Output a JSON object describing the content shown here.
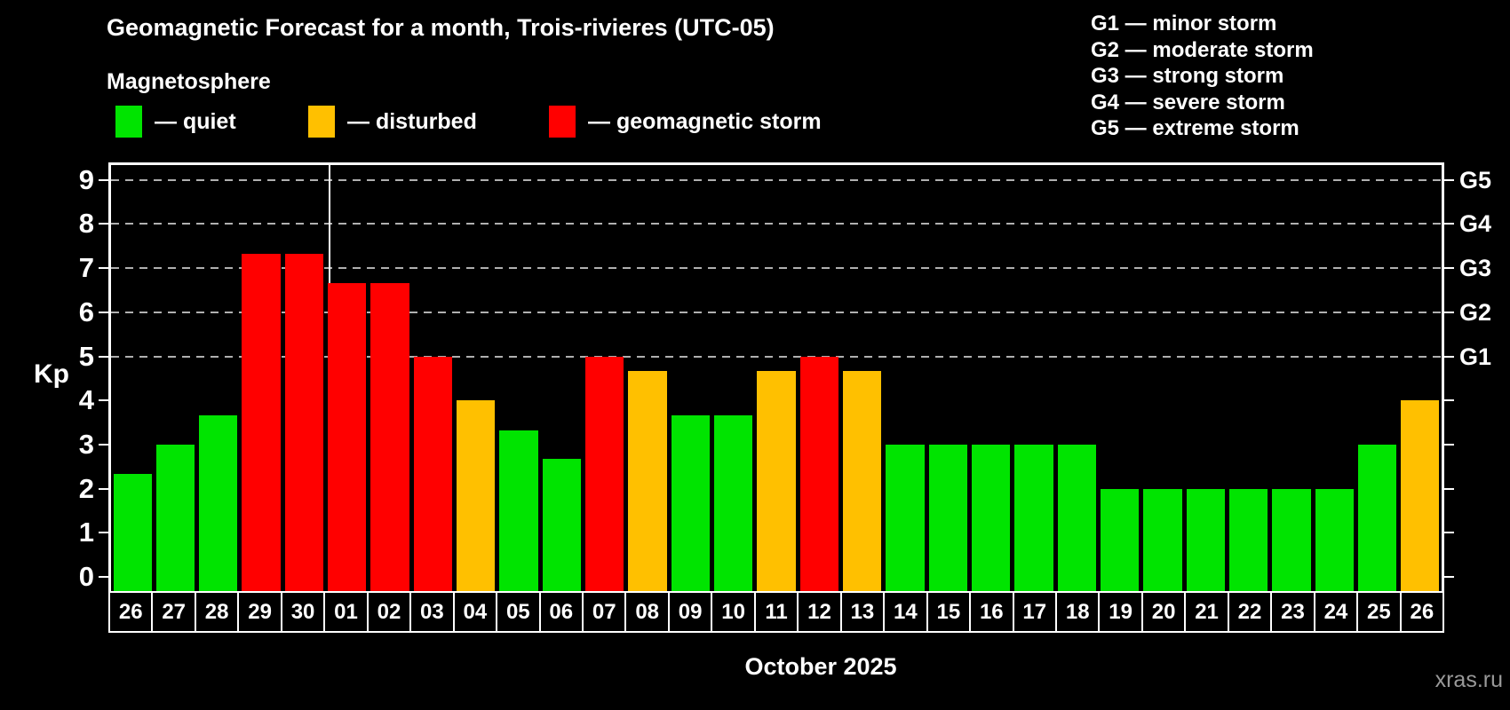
{
  "header": {
    "title": "Geomagnetic Forecast for a month, Trois-rivieres (UTC-05)",
    "subtitle": "Magnetosphere",
    "legend": {
      "items": [
        {
          "id": "quiet",
          "label": "— quiet",
          "color": "#00e400"
        },
        {
          "id": "disturbed",
          "label": "— disturbed",
          "color": "#ffc000"
        },
        {
          "id": "storm",
          "label": "— geomagnetic storm",
          "color": "#ff0000"
        }
      ]
    },
    "g_scale_legend": {
      "items": [
        {
          "label": "G1 — minor storm"
        },
        {
          "label": "G2 — moderate storm"
        },
        {
          "label": "G3 — strong storm"
        },
        {
          "label": "G4 — severe storm"
        },
        {
          "label": "G5 — extreme storm"
        }
      ]
    }
  },
  "chart_data": {
    "type": "bar",
    "title": "Geomagnetic Forecast for a month, Trois-rivieres (UTC-05)",
    "subtitle": "Magnetosphere",
    "ylabel": "Kp",
    "xlabel": "October 2025",
    "ylim": [
      0,
      9.4
    ],
    "yticks": [
      0,
      1,
      2,
      3,
      4,
      5,
      6,
      7,
      8,
      9
    ],
    "grid": {
      "style": "dashed-horizontal",
      "at_kp": [
        5,
        6,
        7,
        8,
        9
      ]
    },
    "right_axis": {
      "labels": [
        {
          "label": "G1",
          "kp": 5
        },
        {
          "label": "G2",
          "kp": 6
        },
        {
          "label": "G3",
          "kp": 7
        },
        {
          "label": "G4",
          "kp": 8
        },
        {
          "label": "G5",
          "kp": 9
        }
      ]
    },
    "status_colors": {
      "quiet": "#00e400",
      "disturbed": "#ffc000",
      "storm": "#ff0000"
    },
    "month_divider_after_day": "30",
    "bars": [
      {
        "day": "26",
        "kp": 2.33,
        "status": "quiet"
      },
      {
        "day": "27",
        "kp": 3.0,
        "status": "quiet"
      },
      {
        "day": "28",
        "kp": 3.67,
        "status": "quiet"
      },
      {
        "day": "29",
        "kp": 7.33,
        "status": "storm"
      },
      {
        "day": "30",
        "kp": 7.33,
        "status": "storm"
      },
      {
        "day": "01",
        "kp": 6.67,
        "status": "storm"
      },
      {
        "day": "02",
        "kp": 6.67,
        "status": "storm"
      },
      {
        "day": "03",
        "kp": 5.0,
        "status": "storm"
      },
      {
        "day": "04",
        "kp": 4.0,
        "status": "disturbed"
      },
      {
        "day": "05",
        "kp": 3.33,
        "status": "quiet"
      },
      {
        "day": "06",
        "kp": 2.67,
        "status": "quiet"
      },
      {
        "day": "07",
        "kp": 5.0,
        "status": "storm"
      },
      {
        "day": "08",
        "kp": 4.67,
        "status": "disturbed"
      },
      {
        "day": "09",
        "kp": 3.67,
        "status": "quiet"
      },
      {
        "day": "10",
        "kp": 3.67,
        "status": "quiet"
      },
      {
        "day": "11",
        "kp": 4.67,
        "status": "disturbed"
      },
      {
        "day": "12",
        "kp": 5.0,
        "status": "storm"
      },
      {
        "day": "13",
        "kp": 4.67,
        "status": "disturbed"
      },
      {
        "day": "14",
        "kp": 3.0,
        "status": "quiet"
      },
      {
        "day": "15",
        "kp": 3.0,
        "status": "quiet"
      },
      {
        "day": "16",
        "kp": 3.0,
        "status": "quiet"
      },
      {
        "day": "17",
        "kp": 3.0,
        "status": "quiet"
      },
      {
        "day": "18",
        "kp": 3.0,
        "status": "quiet"
      },
      {
        "day": "19",
        "kp": 2.0,
        "status": "quiet"
      },
      {
        "day": "20",
        "kp": 2.0,
        "status": "quiet"
      },
      {
        "day": "21",
        "kp": 2.0,
        "status": "quiet"
      },
      {
        "day": "22",
        "kp": 2.0,
        "status": "quiet"
      },
      {
        "day": "23",
        "kp": 2.0,
        "status": "quiet"
      },
      {
        "day": "24",
        "kp": 2.0,
        "status": "quiet"
      },
      {
        "day": "25",
        "kp": 3.0,
        "status": "quiet"
      },
      {
        "day": "26",
        "kp": 4.0,
        "status": "disturbed"
      }
    ],
    "legend_position": "top-left"
  },
  "footer": {
    "caption": "October 2025",
    "watermark": "xras.ru"
  }
}
